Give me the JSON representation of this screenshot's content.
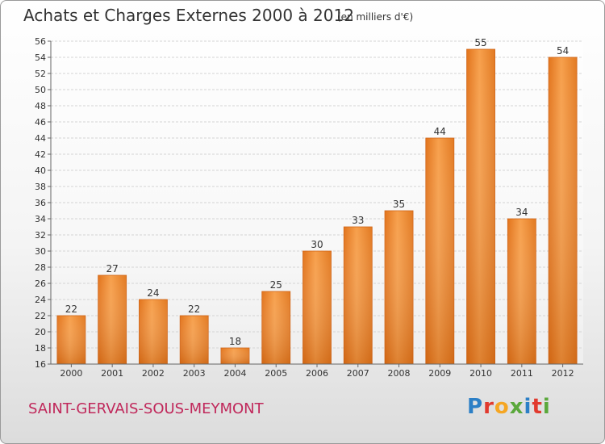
{
  "page": {
    "title": "Achats et Charges Externes 2000 à 2012",
    "unit": "(en milliers d'€)",
    "commune": "SAINT-GERVAIS-SOUS-MEYMONT",
    "brand": {
      "letters": [
        {
          "ch": "P",
          "color": "#2c7fc6"
        },
        {
          "ch": "r",
          "color": "#e13a2e"
        },
        {
          "ch": "o",
          "color": "#f5a623"
        },
        {
          "ch": "x",
          "color": "#5aa83b"
        },
        {
          "ch": "i",
          "color": "#2c7fc6"
        },
        {
          "ch": "t",
          "color": "#e13a2e"
        },
        {
          "ch": "i",
          "color": "#5aa83b"
        }
      ]
    }
  },
  "chart_data": {
    "type": "bar",
    "title": "Achats et Charges Externes 2000 à 2012",
    "subtitle": "(en milliers d'€)",
    "categories": [
      "2000",
      "2001",
      "2002",
      "2003",
      "2004",
      "2005",
      "2006",
      "2007",
      "2008",
      "2009",
      "2010",
      "2011",
      "2012"
    ],
    "values": [
      22,
      27,
      24,
      22,
      18,
      25,
      30,
      33,
      35,
      44,
      55,
      34,
      54
    ],
    "ylim": [
      16,
      56
    ],
    "yticks": [
      16,
      18,
      20,
      22,
      24,
      26,
      28,
      30,
      32,
      34,
      36,
      38,
      40,
      42,
      44,
      46,
      48,
      50,
      52,
      54,
      56
    ],
    "grid": true,
    "bar_color": "#f0862a",
    "xlabel": "",
    "ylabel": ""
  }
}
